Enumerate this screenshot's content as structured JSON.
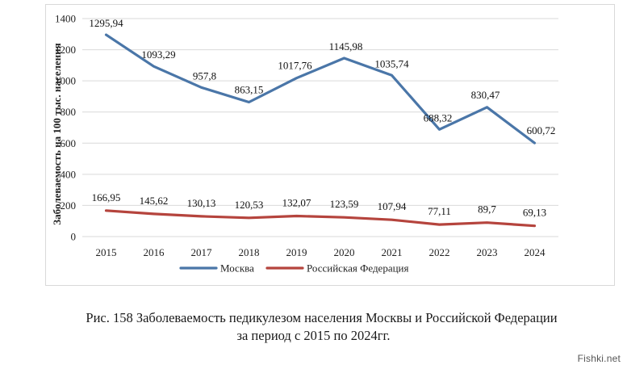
{
  "chart_data": {
    "type": "line",
    "categories": [
      "2015",
      "2016",
      "2017",
      "2018",
      "2019",
      "2020",
      "2021",
      "2022",
      "2023",
      "2024"
    ],
    "series": [
      {
        "name": "Москва",
        "color": "#4a76a8",
        "values": [
          1295.94,
          1093.29,
          957.8,
          863.15,
          1017.76,
          1145.98,
          1035.74,
          688.32,
          830.47,
          600.72
        ],
        "labels": [
          "1295,94",
          "1093,29",
          "957,8",
          "863,15",
          "1017,76",
          "1145,98",
          "1035,74",
          "688,32",
          "830,47",
          "600,72"
        ]
      },
      {
        "name": "Российская Федерация",
        "color": "#b5443d",
        "values": [
          166.95,
          145.62,
          130.13,
          120.53,
          132.07,
          123.59,
          107.94,
          77.11,
          89.7,
          69.13
        ],
        "labels": [
          "166,95",
          "145,62",
          "130,13",
          "120,53",
          "132,07",
          "123,59",
          "107,94",
          "77,11",
          "89,7",
          "69,13"
        ]
      }
    ],
    "ylabel": "Заболеваемость на 100 тыс. населения",
    "xlabel": "",
    "ylim": [
      0,
      1400
    ],
    "yticks": [
      0,
      200,
      400,
      600,
      800,
      1000,
      1200,
      1400
    ],
    "grid": true,
    "legend": "bottom"
  },
  "caption": {
    "line1": "Рис. 158 Заболеваемость педикулезом населения Москвы и Российской Федерации",
    "line2": "за период с 2015 по 2024гг."
  },
  "watermark": "Fishki.net"
}
